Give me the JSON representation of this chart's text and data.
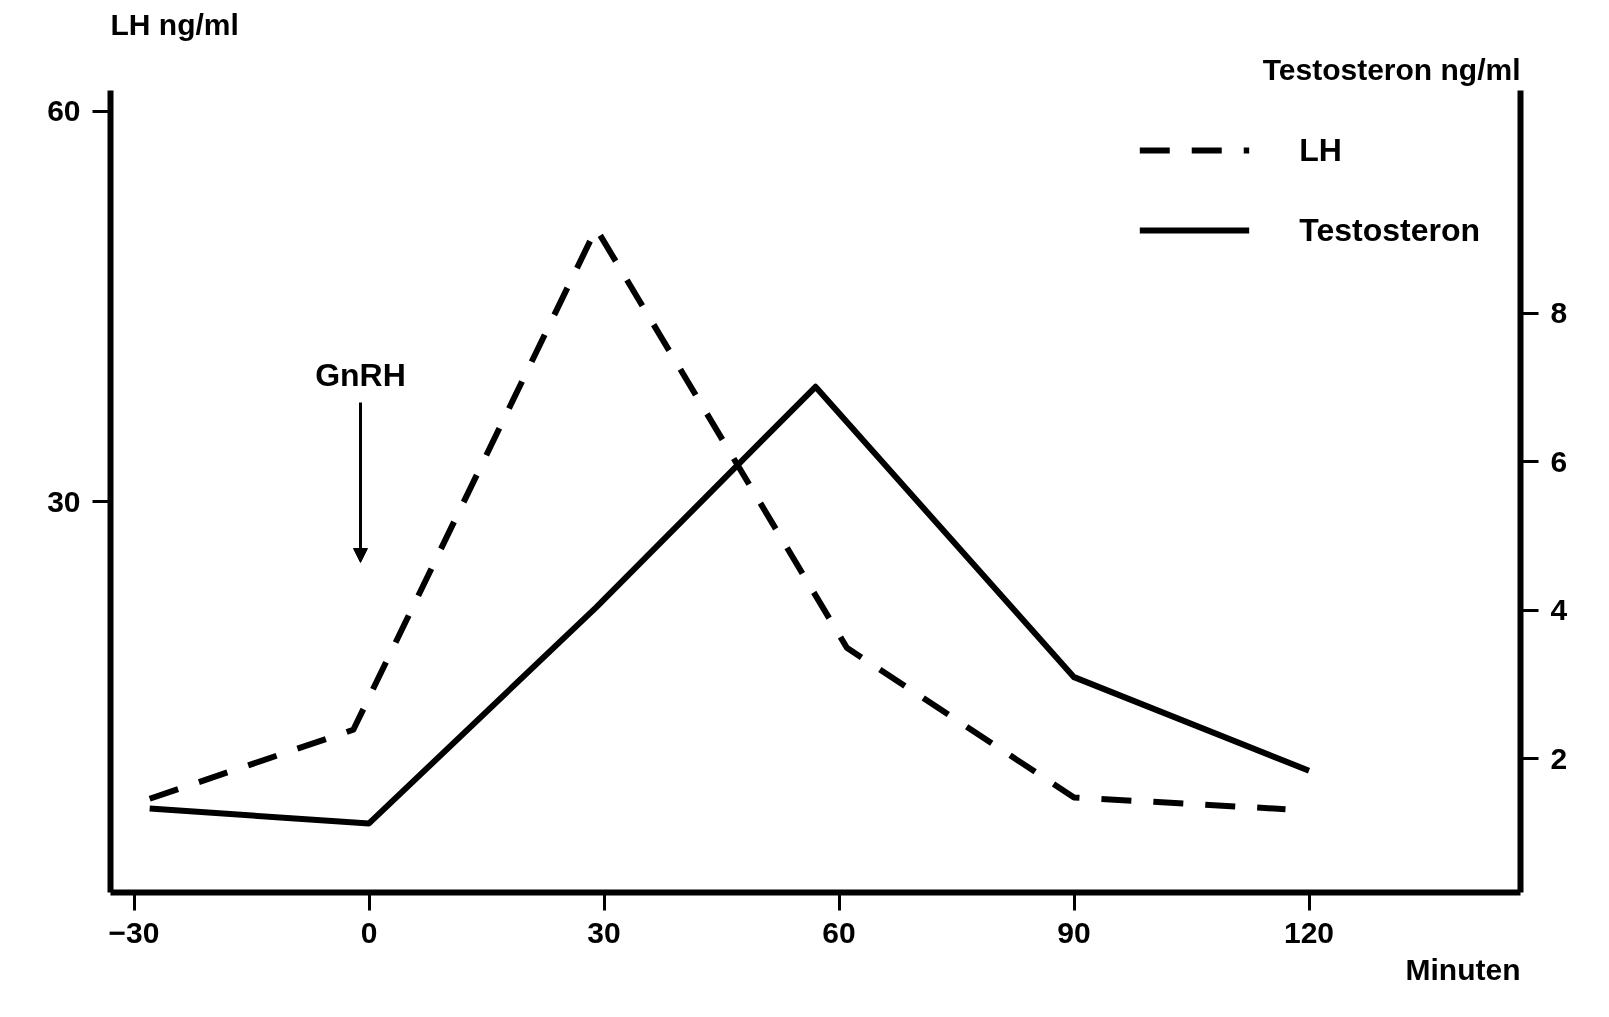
{
  "chart_data": {
    "type": "line",
    "xlabel": "Minuten",
    "ylabel": "LH ng/ml",
    "y2label": "Testosteron ng/ml",
    "xlim": [
      -33,
      147
    ],
    "xticks": [
      -30,
      0,
      30,
      60,
      90,
      120
    ],
    "ylim": [
      0,
      61.6
    ],
    "yticks": [
      30,
      60
    ],
    "y2lim": [
      0.2,
      11
    ],
    "y2ticks": [
      2,
      4,
      6,
      8
    ],
    "series": [
      {
        "name": "LH",
        "color": "#000000",
        "line_style": "dashed",
        "x": [
          -28,
          -2,
          29,
          61,
          90,
          117
        ],
        "values": [
          7.2,
          12.5,
          51,
          18.8,
          7.3,
          6.4
        ]
      },
      {
        "name": "Testosteron",
        "color": "#000000",
        "line_style": "solid",
        "axis": "y2",
        "x": [
          -28,
          0,
          29,
          57,
          90,
          120
        ],
        "values": [
          1.33,
          1.13,
          4.04,
          7.01,
          3.1,
          1.84
        ]
      }
    ],
    "annotations": [
      "GnRH"
    ],
    "legend": "top right",
    "grid": false
  }
}
